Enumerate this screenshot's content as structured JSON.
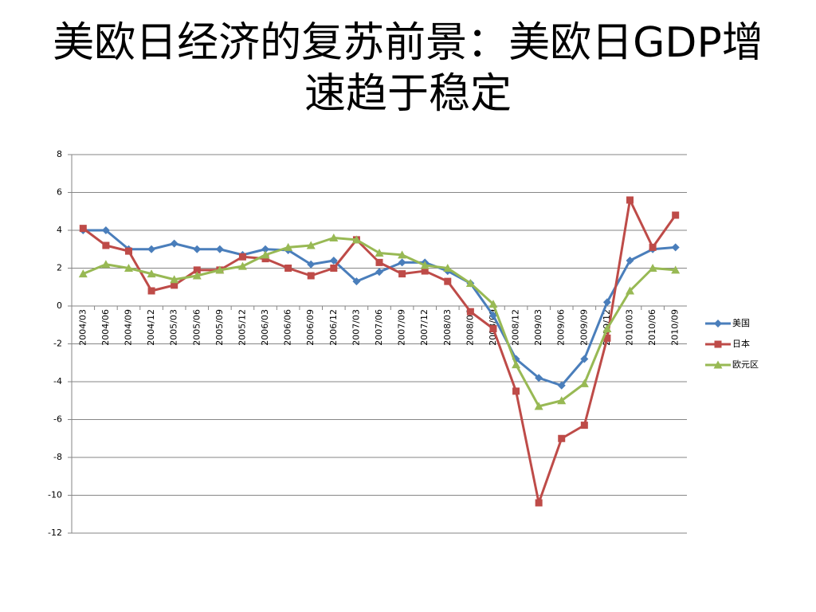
{
  "chart_data": {
    "type": "line",
    "title": "美欧日经济的复苏前景：美欧日GDP增速趋于稳定",
    "categories": [
      "2004/03",
      "2004/06",
      "2004/09",
      "2004/12",
      "2005/03",
      "2005/06",
      "2005/09",
      "2005/12",
      "2006/03",
      "2006/06",
      "2006/09",
      "2006/12",
      "2007/03",
      "2007/06",
      "2007/09",
      "2007/12",
      "2008/03",
      "2008/06",
      "2008/09",
      "2008/12",
      "2009/03",
      "2009/06",
      "2009/09",
      "2009/12",
      "2010/03",
      "2010/06",
      "2010/09"
    ],
    "series": [
      {
        "name": "美国",
        "color": "#4a7ebb",
        "marker": "diamond",
        "values": [
          4.0,
          4.0,
          3.0,
          3.0,
          3.3,
          3.0,
          3.0,
          2.7,
          3.0,
          2.95,
          2.2,
          2.4,
          1.3,
          1.8,
          2.3,
          2.3,
          1.85,
          1.2,
          -0.5,
          -2.8,
          -3.8,
          -4.2,
          -2.8,
          0.2,
          2.4,
          3.0,
          3.1
        ]
      },
      {
        "name": "日本",
        "color": "#be4b48",
        "marker": "square",
        "values": [
          4.1,
          3.2,
          2.9,
          0.8,
          1.1,
          1.9,
          1.9,
          2.6,
          2.5,
          2.0,
          1.6,
          2.0,
          3.5,
          2.3,
          1.7,
          1.85,
          1.3,
          -0.3,
          -1.2,
          -4.5,
          -10.4,
          -7.0,
          -6.3,
          -1.7,
          5.6,
          3.1,
          4.8
        ]
      },
      {
        "name": "欧元区",
        "color": "#98b954",
        "marker": "triangle",
        "values": [
          1.7,
          2.2,
          2.0,
          1.7,
          1.4,
          1.6,
          1.9,
          2.1,
          2.7,
          3.1,
          3.2,
          3.6,
          3.5,
          2.8,
          2.7,
          2.15,
          2.0,
          1.2,
          0.1,
          -3.1,
          -5.3,
          -5.0,
          -4.1,
          -1.2,
          0.8,
          2.0,
          1.9
        ]
      }
    ],
    "ylim": [
      -12,
      8
    ],
    "yticks": [
      -12,
      -10,
      -8,
      -6,
      -4,
      -2,
      0,
      2,
      4,
      6,
      8
    ],
    "grid": true,
    "legend": "right"
  }
}
